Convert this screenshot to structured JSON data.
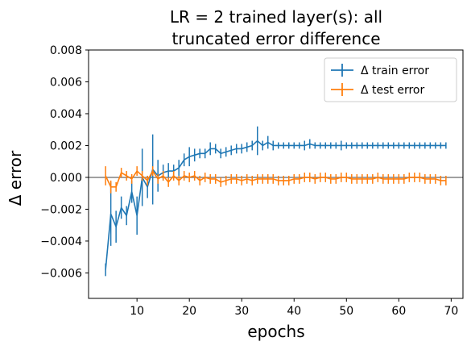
{
  "chart_data": {
    "type": "line",
    "title": [
      "LR = 2 trained layer(s): all",
      "truncated error difference"
    ],
    "xlabel": "epochs",
    "ylabel": "Δ error",
    "xlim": [
      0.75,
      72.25
    ],
    "ylim": [
      -0.0076,
      0.008
    ],
    "xticks": [
      10,
      20,
      30,
      40,
      50,
      60,
      70
    ],
    "yticks": [
      -0.006,
      -0.004,
      -0.002,
      0.0,
      0.002,
      0.004,
      0.006,
      0.008
    ],
    "ytick_labels": [
      "−0.006",
      "−0.004",
      "−0.002",
      "0.000",
      "0.002",
      "0.004",
      "0.006",
      "0.008"
    ],
    "hline": 0,
    "grid": false,
    "legend_position": "top-right",
    "x": [
      4,
      5,
      6,
      7,
      8,
      9,
      10,
      11,
      12,
      13,
      14,
      15,
      16,
      17,
      18,
      19,
      20,
      21,
      22,
      23,
      24,
      25,
      26,
      27,
      28,
      29,
      30,
      31,
      32,
      33,
      34,
      35,
      36,
      37,
      38,
      39,
      40,
      41,
      42,
      43,
      44,
      45,
      46,
      47,
      48,
      49,
      50,
      51,
      52,
      53,
      54,
      55,
      56,
      57,
      58,
      59,
      60,
      61,
      62,
      63,
      64,
      65,
      66,
      67,
      68,
      69
    ],
    "series": [
      {
        "name": "Δ train error",
        "color": "#1f77b4",
        "values": [
          -0.0058,
          -0.0023,
          -0.0031,
          -0.0019,
          -0.0024,
          -0.0009,
          -0.0024,
          0.0,
          -0.0006,
          0.0005,
          0.0001,
          0.0003,
          0.0004,
          0.0004,
          0.0006,
          0.0011,
          0.0013,
          0.0014,
          0.0015,
          0.0015,
          0.0018,
          0.0018,
          0.0015,
          0.0016,
          0.0017,
          0.0018,
          0.0018,
          0.0019,
          0.002,
          0.0023,
          0.002,
          0.0022,
          0.002,
          0.002,
          0.002,
          0.002,
          0.002,
          0.002,
          0.002,
          0.0021,
          0.002,
          0.002,
          0.002,
          0.002,
          0.002,
          0.002,
          0.002,
          0.002,
          0.002,
          0.002,
          0.002,
          0.002,
          0.002,
          0.002,
          0.002,
          0.002,
          0.002,
          0.002,
          0.002,
          0.002,
          0.002,
          0.002,
          0.002,
          0.002,
          0.002,
          0.002
        ],
        "errors": [
          0.0004,
          0.002,
          0.001,
          0.0007,
          0.0006,
          0.0007,
          0.0012,
          0.0018,
          0.0007,
          0.0022,
          0.001,
          0.0005,
          0.0005,
          0.0004,
          0.0005,
          0.0004,
          0.0006,
          0.0004,
          0.0003,
          0.0003,
          0.0004,
          0.0003,
          0.0003,
          0.0003,
          0.0003,
          0.0003,
          0.0003,
          0.0003,
          0.0003,
          0.0009,
          0.0003,
          0.0004,
          0.0003,
          0.0002,
          0.0002,
          0.0002,
          0.0002,
          0.0002,
          0.0003,
          0.0003,
          0.0002,
          0.0002,
          0.0002,
          0.0002,
          0.0002,
          0.0003,
          0.0002,
          0.0002,
          0.0002,
          0.0002,
          0.0002,
          0.0002,
          0.0002,
          0.0002,
          0.0002,
          0.0002,
          0.0002,
          0.0002,
          0.0002,
          0.0002,
          0.0002,
          0.0002,
          0.0002,
          0.0002,
          0.0002,
          0.0002
        ]
      },
      {
        "name": "Δ test error",
        "color": "#ff7f0e",
        "values": [
          0.0001,
          -0.0006,
          -0.0006,
          0.0003,
          0.0001,
          -0.0001,
          0.0004,
          0.0001,
          -0.0002,
          0.0004,
          -0.0001,
          0.0001,
          -0.0003,
          0.0001,
          -0.0002,
          0.0001,
          0.0,
          0.0001,
          -0.0002,
          0.0,
          -0.0001,
          -0.0001,
          -0.0003,
          -0.0002,
          -0.0001,
          -0.0001,
          -0.0002,
          -0.0001,
          -0.0002,
          -0.0001,
          -0.0001,
          -0.0001,
          -0.0001,
          -0.0002,
          -0.0002,
          -0.0002,
          -0.0001,
          -0.0001,
          0.0,
          0.0,
          -0.0001,
          0.0,
          0.0,
          -0.0001,
          -0.0001,
          0.0,
          0.0,
          -0.0001,
          -0.0001,
          -0.0001,
          -0.0001,
          -0.0001,
          0.0,
          -0.0001,
          -0.0001,
          -0.0001,
          -0.0001,
          -0.0001,
          0.0,
          0.0,
          0.0,
          -0.0001,
          -0.0001,
          -0.0001,
          -0.0002,
          -0.0002
        ],
        "errors": [
          0.0006,
          0.0004,
          0.0003,
          0.0003,
          0.0003,
          0.0003,
          0.0003,
          0.0003,
          0.0003,
          0.0003,
          0.0003,
          0.0003,
          0.0003,
          0.0003,
          0.0003,
          0.0003,
          0.0003,
          0.0003,
          0.0003,
          0.0003,
          0.0003,
          0.0003,
          0.0003,
          0.0003,
          0.0003,
          0.0003,
          0.0003,
          0.0003,
          0.0003,
          0.0003,
          0.0003,
          0.0003,
          0.0003,
          0.0003,
          0.0003,
          0.0003,
          0.0003,
          0.0003,
          0.0003,
          0.0003,
          0.0003,
          0.0003,
          0.0003,
          0.0003,
          0.0003,
          0.0003,
          0.0003,
          0.0003,
          0.0003,
          0.0003,
          0.0003,
          0.0003,
          0.0003,
          0.0003,
          0.0003,
          0.0003,
          0.0003,
          0.0003,
          0.0003,
          0.0003,
          0.0003,
          0.0003,
          0.0003,
          0.0003,
          0.0003,
          0.0003
        ]
      }
    ]
  }
}
